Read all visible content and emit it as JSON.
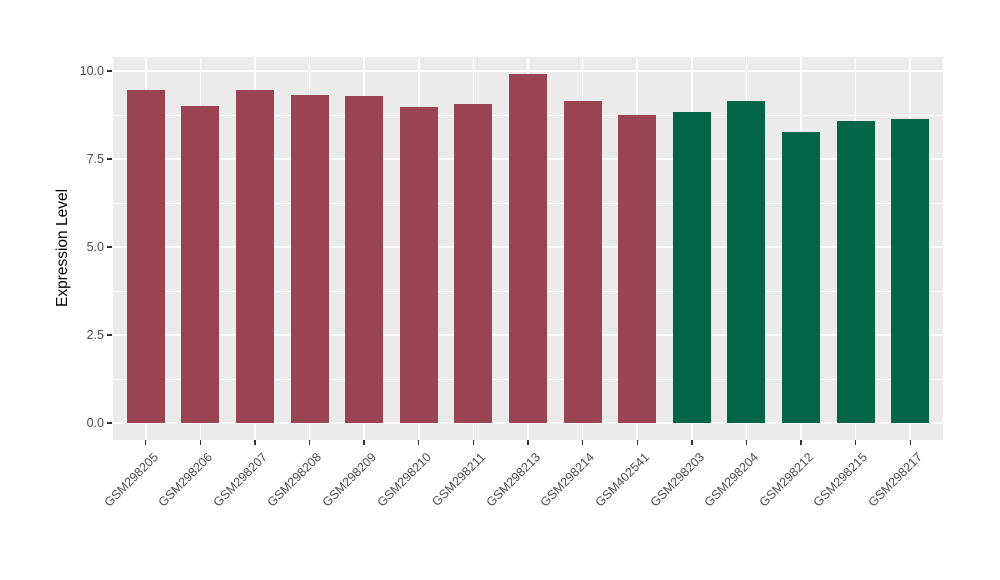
{
  "chart_data": {
    "type": "bar",
    "title": "",
    "xlabel": "",
    "ylabel": "Expression Level",
    "categories": [
      "GSM298205",
      "GSM298206",
      "GSM298207",
      "GSM298208",
      "GSM298209",
      "GSM298210",
      "GSM298211",
      "GSM298213",
      "GSM298214",
      "GSM402541",
      "GSM298203",
      "GSM298204",
      "GSM298212",
      "GSM298215",
      "GSM298217"
    ],
    "values": [
      9.46,
      9.0,
      9.46,
      9.31,
      9.28,
      8.98,
      9.07,
      9.91,
      9.16,
      8.75,
      8.83,
      9.14,
      8.26,
      8.57,
      8.63
    ],
    "bar_colors": [
      "#9A4452",
      "#9A4452",
      "#9A4452",
      "#9A4452",
      "#9A4452",
      "#9A4452",
      "#9A4452",
      "#9A4452",
      "#9A4452",
      "#9A4452",
      "#006647",
      "#006647",
      "#006647",
      "#006647",
      "#006647"
    ],
    "group_colors": {
      "group1": "#9A4452",
      "group2": "#006647"
    },
    "ytick_labels": [
      "0.0",
      "2.5",
      "5.0",
      "7.5",
      "10.0"
    ],
    "ytick_values": [
      0,
      2.5,
      5,
      7.5,
      10
    ],
    "ylim": [
      -0.48,
      10.4
    ],
    "xtick_rotation_deg": 45,
    "grid": {
      "major": true,
      "minor": true
    },
    "legend": {
      "visible": false
    },
    "colors": {
      "panel_bg": "#EBEBEB",
      "grid": "#FFFFFF",
      "tick_text": "#4D4D4D",
      "axis_title_text": "#000000"
    }
  }
}
